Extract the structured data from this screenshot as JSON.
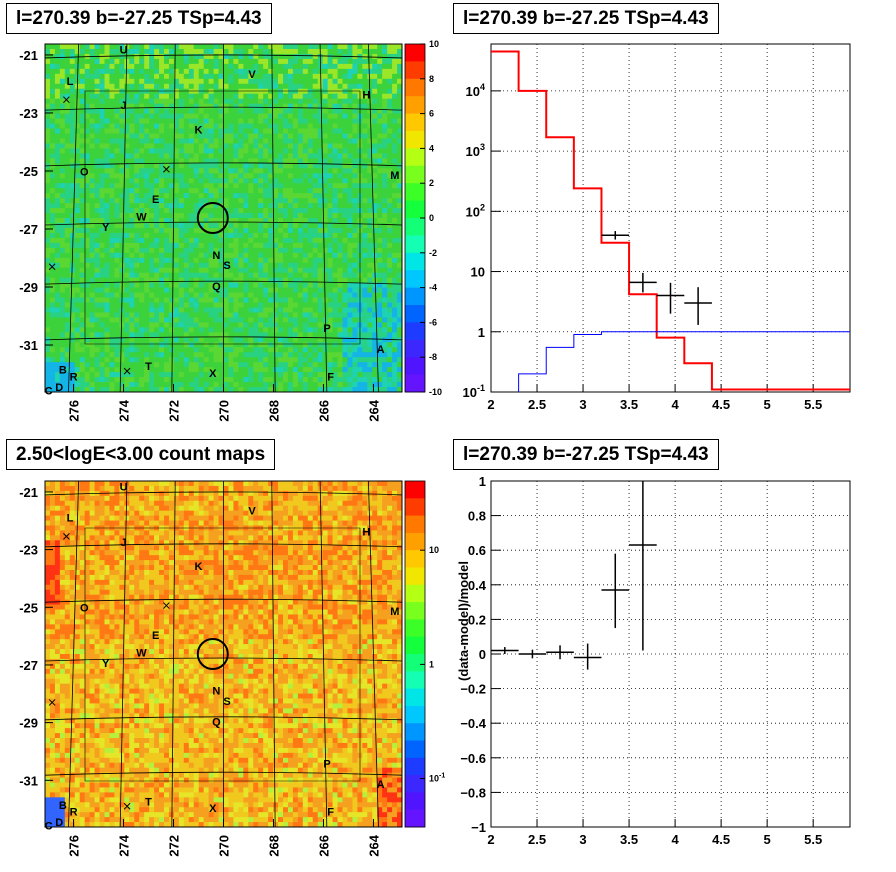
{
  "panels": {
    "tl_title": "l=270.39 b=-27.25 TSp=4.43",
    "tr_title": "l=270.39 b=-27.25 TSp=4.43",
    "bl_title": "2.50<logE<3.00 count maps",
    "br_title": "l=270.39 b=-27.25 TSp=4.43"
  },
  "chart_data": [
    {
      "type": "heatmap",
      "title": "l=270.39 b=-27.25 TSp=4.43",
      "x_ticks": [
        "276",
        "274",
        "272",
        "270",
        "268",
        "266",
        "264"
      ],
      "y_ticks": [
        "-21",
        "-23",
        "-25",
        "-27",
        "-29",
        "-31"
      ],
      "colorbar_ticks": [
        "10",
        "8",
        "6",
        "4",
        "2",
        "0",
        "-2",
        "-4",
        "-6",
        "-8",
        "-10"
      ],
      "colorbar_range": [
        -10,
        10
      ],
      "dominant_color": "#3cd23c",
      "source_labels": [
        "U",
        "L",
        "J",
        "K",
        "V",
        "H",
        "O",
        "E",
        "W",
        "Y",
        "M",
        "N",
        "S",
        "Q",
        "P",
        "T",
        "X",
        "F",
        "A",
        "B",
        "R",
        "D",
        "C"
      ]
    },
    {
      "type": "line",
      "title": "l=270.39 b=-27.25 TSp=4.43",
      "y_scale": "log",
      "xlim": [
        2,
        5.9
      ],
      "ylim": [
        0.1,
        60000
      ],
      "x_ticks": [
        "2",
        "2.5",
        "3",
        "3.5",
        "4",
        "4.5",
        "5",
        "5.5"
      ],
      "y_ticks": [
        "10^-1",
        "1",
        "10",
        "10^2",
        "10^3",
        "10^4"
      ],
      "grid": true,
      "series": [
        {
          "color": "#ff0000",
          "style": "step",
          "edges": [
            2,
            2.3,
            2.6,
            2.9,
            3.2,
            3.5,
            3.8,
            4.1,
            4.4,
            5.9
          ],
          "values": [
            45000,
            10000,
            1700,
            240,
            30,
            4.2,
            0.8,
            0.3,
            0.11
          ]
        },
        {
          "color": "#0000ff",
          "style": "step",
          "edges": [
            2.3,
            2.6,
            2.9,
            3.2,
            3.5,
            5.9
          ],
          "values": [
            0.2,
            0.55,
            0.9,
            1.0,
            1.0
          ]
        },
        {
          "color": "#000000",
          "style": "points",
          "points": [
            {
              "x": 3.35,
              "y": 40,
              "xerr": 0.15,
              "ylo": 34,
              "yhi": 47
            },
            {
              "x": 3.65,
              "y": 6.6,
              "xerr": 0.15,
              "ylo": 4.5,
              "yhi": 9.5
            },
            {
              "x": 3.95,
              "y": 4.0,
              "xerr": 0.15,
              "ylo": 2.0,
              "yhi": 6.5
            },
            {
              "x": 4.25,
              "y": 3.0,
              "xerr": 0.15,
              "ylo": 1.3,
              "yhi": 5.5
            }
          ]
        }
      ]
    },
    {
      "type": "heatmap",
      "title": "2.50<logE<3.00 count maps",
      "x_ticks": [
        "276",
        "274",
        "272",
        "270",
        "268",
        "266",
        "264"
      ],
      "y_ticks": [
        "-21",
        "-23",
        "-25",
        "-27",
        "-29",
        "-31"
      ],
      "colorbar_ticks": [
        "10",
        "1",
        "10^-1"
      ],
      "colorbar_scale": "log",
      "dominant_color": "#f5b41e",
      "source_labels": [
        "U",
        "L",
        "J",
        "K",
        "V",
        "H",
        "O",
        "E",
        "W",
        "Y",
        "M",
        "N",
        "S",
        "Q",
        "P",
        "T",
        "X",
        "F",
        "A",
        "B",
        "R",
        "D",
        "C"
      ]
    },
    {
      "type": "scatter",
      "title": "l=270.39 b=-27.25 TSp=4.43",
      "ylabel": "(data-model)/model",
      "xlim": [
        2,
        5.9
      ],
      "ylim": [
        -1,
        1
      ],
      "x_ticks": [
        "2",
        "2.5",
        "3",
        "3.5",
        "4",
        "4.5",
        "5",
        "5.5"
      ],
      "y_ticks": [
        "1",
        "0.8",
        "0.6",
        "0.4",
        "0.2",
        "0",
        "−0.2",
        "−0.4",
        "−0.6",
        "−0.8",
        "−1"
      ],
      "grid": true,
      "points": [
        {
          "x": 2.15,
          "y": 0.02,
          "xerr": 0.15,
          "ylo": 0.0,
          "yhi": 0.04
        },
        {
          "x": 2.45,
          "y": 0.0,
          "xerr": 0.15,
          "ylo": -0.025,
          "yhi": 0.025
        },
        {
          "x": 2.75,
          "y": 0.01,
          "xerr": 0.15,
          "ylo": -0.03,
          "yhi": 0.05
        },
        {
          "x": 3.05,
          "y": -0.02,
          "xerr": 0.15,
          "ylo": -0.09,
          "yhi": 0.06
        },
        {
          "x": 3.35,
          "y": 0.37,
          "xerr": 0.15,
          "ylo": 0.15,
          "yhi": 0.58
        },
        {
          "x": 3.65,
          "y": 0.63,
          "xerr": 0.15,
          "ylo": 0.02,
          "yhi": 1.0
        }
      ]
    }
  ]
}
